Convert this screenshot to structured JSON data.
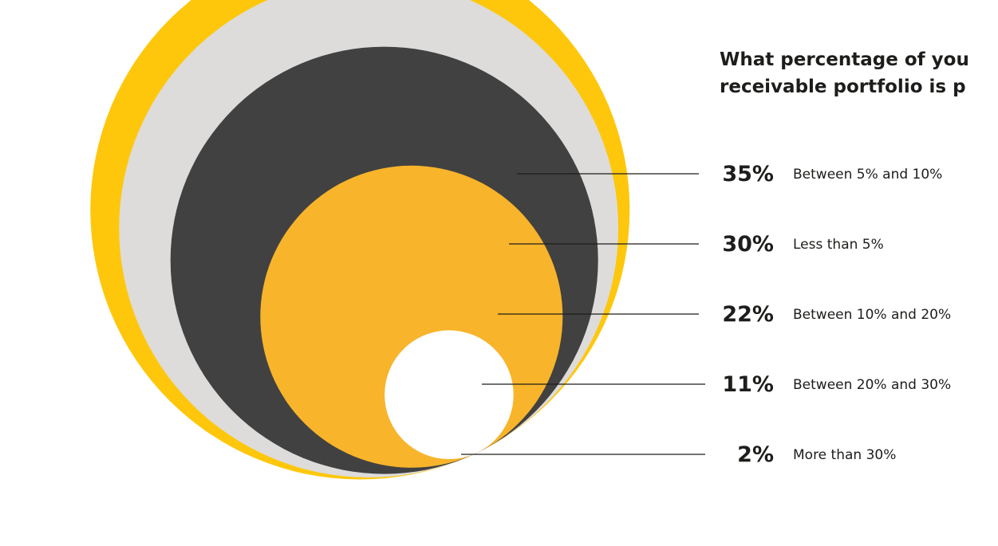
{
  "title_lines": [
    "What percentage of you",
    "receivable portfolio is p"
  ],
  "chart_data": {
    "type": "bubble",
    "title": "What percentage of you receivable portfolio is p",
    "unit": "%",
    "items": [
      {
        "label": "Between 5% and 10%",
        "value": 35,
        "display": "35%",
        "color": "#fec70c"
      },
      {
        "label": "Less than 5%",
        "value": 30,
        "display": "30%",
        "color": "#dddcdb"
      },
      {
        "label": "Between 10% and 20%",
        "value": 22,
        "display": "22%",
        "color": "#414141"
      },
      {
        "label": "Between 20% and 30%",
        "value": 11,
        "display": "11%",
        "color": "#f8b42a"
      },
      {
        "label": "More than 30%",
        "value": 2,
        "display": "2%",
        "color": "#ffffff"
      }
    ],
    "leader_line_color": "#1d1d1b"
  }
}
